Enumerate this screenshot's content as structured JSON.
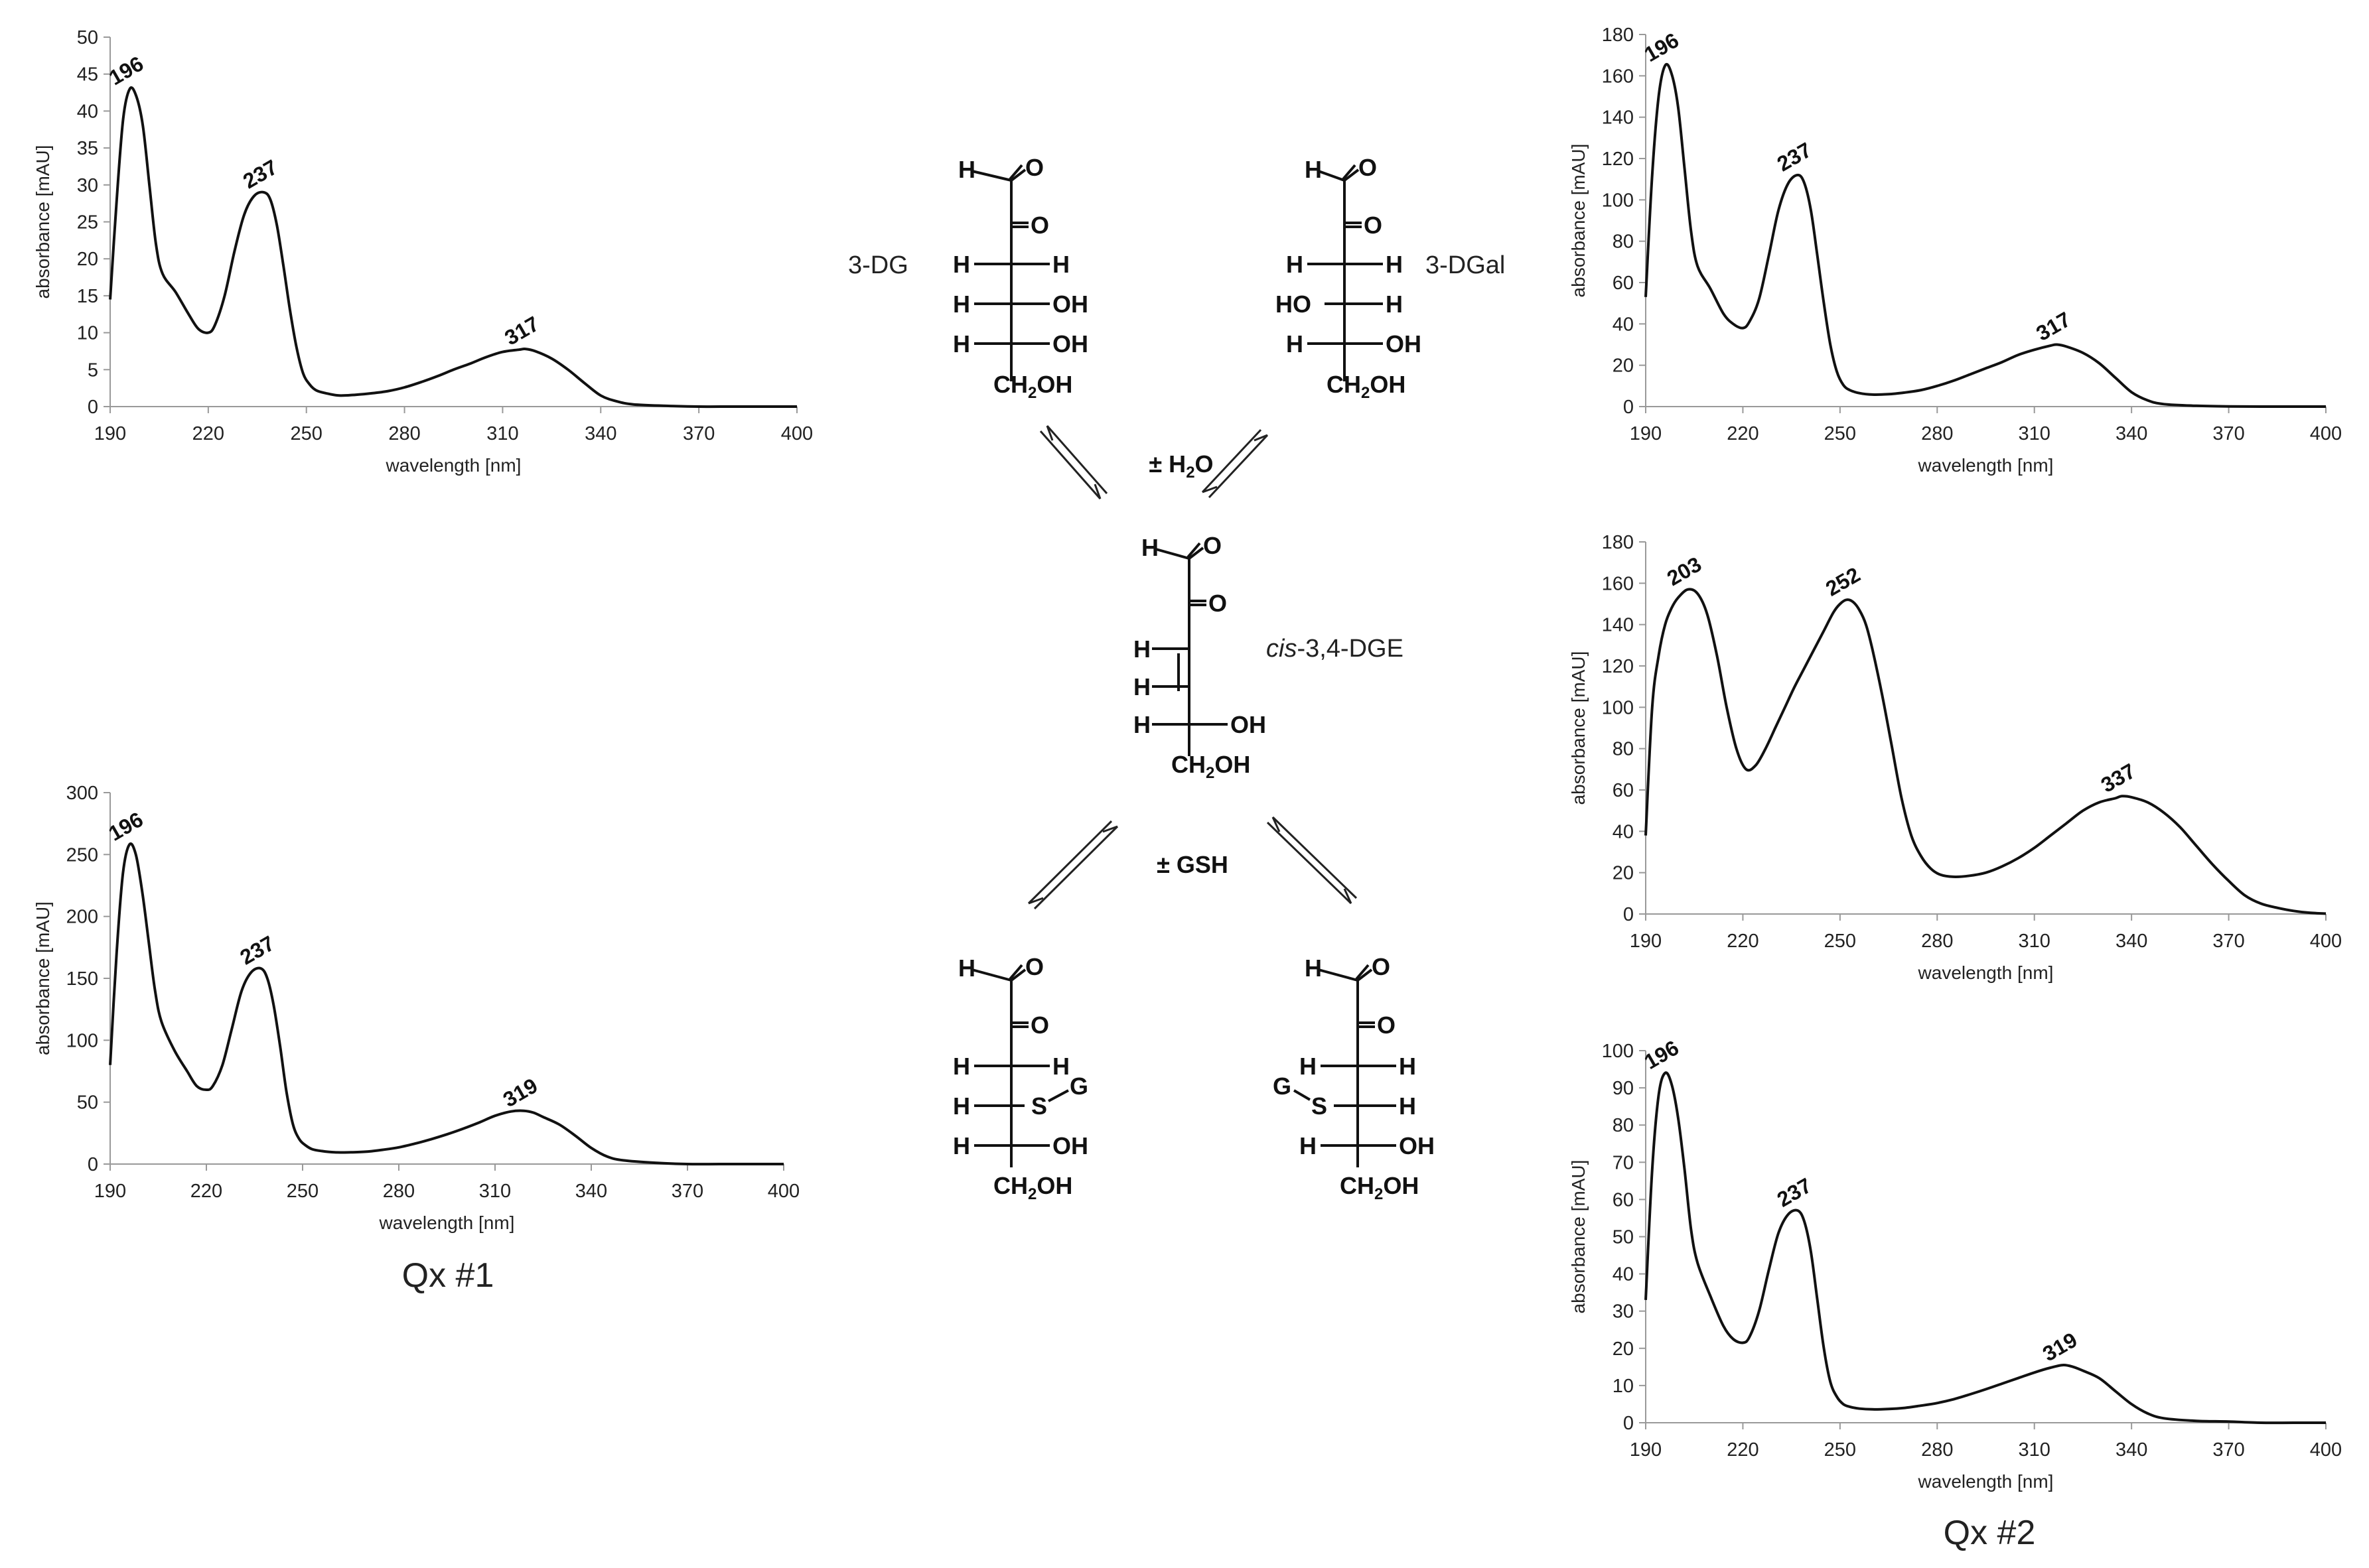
{
  "figure": {
    "captions": {
      "qx1": "Qx #1",
      "qx2": "Qx #2"
    },
    "molecules": {
      "dg": {
        "name": "3-DG",
        "rows": [
          [
            "H",
            "",
            ""
          ],
          [
            "",
            "",
            "O"
          ],
          [
            "H",
            "",
            "H"
          ],
          [
            "H",
            "",
            "OH"
          ],
          [
            "H",
            "",
            "OH"
          ],
          [
            "",
            "CH2OH",
            ""
          ]
        ]
      },
      "dgal": {
        "name": "3-DGal",
        "rows": [
          [
            "H",
            "",
            ""
          ],
          [
            "",
            "",
            "O"
          ],
          [
            "H",
            "",
            "H"
          ],
          [
            "HO",
            "",
            "H"
          ],
          [
            "H",
            "",
            "OH"
          ],
          [
            "",
            "CH2OH",
            ""
          ]
        ]
      },
      "dge": {
        "name_prefix": "cis",
        "name_suffix": "-3,4-DGE",
        "rows": [
          [
            "H",
            "",
            ""
          ],
          [
            "",
            "",
            "O"
          ],
          [
            "H",
            "",
            ""
          ],
          [
            "H",
            "",
            ""
          ],
          [
            "H",
            "",
            "OH"
          ],
          [
            "",
            "CH2OH",
            ""
          ]
        ]
      },
      "gsh_left": {
        "rows": [
          [
            "H",
            "",
            ""
          ],
          [
            "",
            "",
            "O"
          ],
          [
            "H",
            "",
            "H"
          ],
          [
            "H",
            "S",
            "G"
          ],
          [
            "H",
            "",
            "OH"
          ],
          [
            "",
            "CH2OH",
            ""
          ]
        ]
      },
      "gsh_right": {
        "rows": [
          [
            "H",
            "",
            ""
          ],
          [
            "",
            "",
            "O"
          ],
          [
            "H",
            "",
            "H"
          ],
          [
            "G",
            "S",
            "H"
          ],
          [
            "H",
            "",
            "OH"
          ],
          [
            "",
            "CH2OH",
            ""
          ]
        ]
      }
    },
    "reactions": {
      "water": "± H2O",
      "gsh": "± GSH"
    }
  },
  "chart_data": [
    {
      "id": "tl",
      "type": "line",
      "xlabel": "wavelength [nm]",
      "ylabel": "absorbance [mAU]",
      "xlim": [
        190,
        400
      ],
      "xticks": [
        190,
        220,
        250,
        280,
        310,
        340,
        370,
        400
      ],
      "ylim": [
        0,
        50
      ],
      "yticks": [
        0,
        5,
        10,
        15,
        20,
        25,
        30,
        35,
        40,
        45,
        50
      ],
      "x": [
        190,
        192,
        194,
        196,
        198,
        200,
        202,
        204,
        206,
        210,
        214,
        217,
        220,
        222,
        225,
        228,
        231,
        234,
        237,
        239,
        241,
        243,
        245,
        247,
        249,
        251,
        253,
        256,
        260,
        265,
        270,
        275,
        280,
        285,
        290,
        295,
        300,
        305,
        310,
        315,
        317,
        320,
        325,
        330,
        335,
        340,
        345,
        350,
        360,
        370,
        380,
        390,
        400
      ],
      "y": [
        14.5,
        28,
        39,
        43,
        42,
        38,
        30,
        22,
        18,
        15.5,
        12.5,
        10.5,
        10,
        11,
        15,
        21,
        26,
        28.5,
        29,
        28,
        24.5,
        19,
        13,
        8,
        4.5,
        3,
        2.2,
        1.8,
        1.5,
        1.6,
        1.8,
        2.1,
        2.6,
        3.3,
        4.1,
        5,
        5.8,
        6.7,
        7.4,
        7.7,
        7.8,
        7.5,
        6.5,
        5,
        3.2,
        1.5,
        0.7,
        0.3,
        0.1,
        0,
        0,
        0,
        0
      ],
      "peaks": [
        {
          "x": 196,
          "label": "196"
        },
        {
          "x": 237,
          "label": "237"
        },
        {
          "x": 317,
          "label": "317"
        }
      ]
    },
    {
      "id": "bl",
      "type": "line",
      "xlabel": "wavelength [nm]",
      "ylabel": "absorbance [mAU]",
      "xlim": [
        190,
        400
      ],
      "xticks": [
        190,
        220,
        250,
        280,
        310,
        340,
        370,
        400
      ],
      "ylim": [
        0,
        300
      ],
      "yticks": [
        0,
        50,
        100,
        150,
        200,
        250,
        300
      ],
      "x": [
        190,
        192,
        194,
        196,
        198,
        200,
        202,
        204,
        206,
        210,
        214,
        217,
        220,
        222,
        225,
        228,
        231,
        234,
        237,
        239,
        241,
        243,
        245,
        247,
        249,
        251,
        253,
        256,
        260,
        265,
        270,
        275,
        280,
        285,
        290,
        295,
        300,
        305,
        310,
        315,
        319,
        322,
        325,
        330,
        335,
        340,
        345,
        350,
        360,
        370,
        380,
        390,
        400
      ],
      "y": [
        80,
        170,
        235,
        258,
        250,
        220,
        180,
        140,
        115,
        92,
        75,
        63,
        60,
        63,
        80,
        110,
        140,
        155,
        158,
        150,
        128,
        95,
        58,
        32,
        20,
        15,
        12,
        10.5,
        9.5,
        9.5,
        10,
        11.5,
        13.5,
        16.5,
        20,
        24,
        28.5,
        33.5,
        39,
        42.5,
        43,
        41.5,
        38,
        32,
        23,
        13,
        6,
        3,
        1,
        0,
        0,
        0,
        0
      ],
      "peaks": [
        {
          "x": 196,
          "label": "196"
        },
        {
          "x": 237,
          "label": "237"
        },
        {
          "x": 319,
          "label": "319"
        }
      ]
    },
    {
      "id": "tr",
      "type": "line",
      "xlabel": "wavelength [nm]",
      "ylabel": "absorbance [mAU]",
      "xlim": [
        190,
        400
      ],
      "xticks": [
        190,
        220,
        250,
        280,
        310,
        340,
        370,
        400
      ],
      "ylim": [
        0,
        180
      ],
      "yticks": [
        0,
        20,
        40,
        60,
        80,
        100,
        120,
        140,
        160,
        180
      ],
      "x": [
        190,
        192,
        194,
        196,
        198,
        200,
        202,
        204,
        206,
        210,
        214,
        217,
        220,
        222,
        225,
        228,
        231,
        234,
        237,
        239,
        241,
        243,
        245,
        247,
        249,
        251,
        253,
        256,
        260,
        265,
        270,
        275,
        280,
        285,
        290,
        295,
        300,
        305,
        310,
        315,
        317,
        320,
        325,
        330,
        335,
        340,
        345,
        350,
        360,
        370,
        380,
        390,
        400
      ],
      "y": [
        53,
        112,
        150,
        165,
        161,
        145,
        115,
        85,
        68,
        57,
        45,
        40,
        38,
        41,
        52,
        73,
        95,
        108,
        112,
        108,
        95,
        73,
        50,
        30,
        17,
        10.5,
        8,
        6.5,
        5.8,
        6,
        6.8,
        8,
        10,
        12.5,
        15.5,
        18.5,
        21.5,
        25,
        27.5,
        29.5,
        30,
        29,
        26,
        21,
        14,
        7,
        3,
        1.2,
        0.4,
        0.1,
        0,
        0,
        0
      ],
      "peaks": [
        {
          "x": 196,
          "label": "196"
        },
        {
          "x": 237,
          "label": "237"
        },
        {
          "x": 317,
          "label": "317"
        }
      ]
    },
    {
      "id": "mr",
      "type": "line",
      "xlabel": "wavelength [nm]",
      "ylabel": "absorbance [mAU]",
      "xlim": [
        190,
        400
      ],
      "xticks": [
        190,
        220,
        250,
        280,
        310,
        340,
        370,
        400
      ],
      "ylim": [
        0,
        180
      ],
      "yticks": [
        0,
        20,
        40,
        60,
        80,
        100,
        120,
        140,
        160,
        180
      ],
      "x": [
        190,
        192,
        194,
        196,
        198,
        200,
        203,
        206,
        209,
        212,
        215,
        218,
        221,
        224,
        227,
        230,
        233,
        236,
        239,
        242,
        245,
        248,
        250,
        252,
        254,
        256,
        258,
        260,
        263,
        266,
        269,
        272,
        275,
        278,
        281,
        285,
        290,
        295,
        300,
        305,
        310,
        315,
        320,
        325,
        330,
        335,
        337,
        340,
        345,
        350,
        355,
        360,
        365,
        370,
        375,
        380,
        385,
        390,
        395,
        400
      ],
      "y": [
        38,
        100,
        125,
        140,
        148,
        153,
        157,
        155,
        145,
        125,
        100,
        80,
        70,
        72,
        80,
        90,
        100,
        110,
        119,
        128,
        137,
        146,
        150,
        152,
        151,
        147,
        140,
        128,
        106,
        81,
        56,
        38,
        28,
        22,
        19,
        18,
        18.5,
        20,
        23,
        27,
        32,
        38,
        44,
        50,
        54,
        56,
        57,
        56.5,
        54,
        49,
        42,
        33,
        24,
        16,
        9,
        5,
        3,
        1.5,
        0.6,
        0.2
      ],
      "peaks": [
        {
          "x": 203,
          "label": "203"
        },
        {
          "x": 252,
          "label": "252"
        },
        {
          "x": 337,
          "label": "337"
        }
      ]
    },
    {
      "id": "br",
      "type": "line",
      "xlabel": "wavelength [nm]",
      "ylabel": "absorbance [mAU]",
      "xlim": [
        190,
        400
      ],
      "xticks": [
        190,
        220,
        250,
        280,
        310,
        340,
        370,
        400
      ],
      "ylim": [
        0,
        100
      ],
      "yticks": [
        0,
        10,
        20,
        30,
        40,
        50,
        60,
        70,
        80,
        90,
        100
      ],
      "x": [
        190,
        192,
        194,
        196,
        198,
        200,
        202,
        204,
        206,
        210,
        214,
        217,
        220,
        222,
        225,
        228,
        231,
        234,
        237,
        239,
        241,
        243,
        245,
        247,
        249,
        251,
        253,
        256,
        260,
        265,
        270,
        275,
        280,
        285,
        290,
        295,
        300,
        305,
        310,
        315,
        319,
        322,
        325,
        330,
        335,
        340,
        345,
        350,
        360,
        370,
        380,
        390,
        400
      ],
      "y": [
        33,
        68,
        88,
        94,
        91,
        82,
        68,
        52,
        43,
        34,
        26,
        22.5,
        21.5,
        23,
        30,
        41,
        51,
        56,
        57,
        54,
        46,
        33,
        20,
        11,
        7,
        5,
        4.3,
        3.8,
        3.6,
        3.7,
        4,
        4.6,
        5.3,
        6.3,
        7.6,
        9,
        10.5,
        12,
        13.5,
        14.8,
        15.5,
        15,
        14,
        12,
        8.5,
        5,
        2.5,
        1.2,
        0.5,
        0.3,
        0,
        0,
        0
      ],
      "peaks": [
        {
          "x": 196,
          "label": "196"
        },
        {
          "x": 237,
          "label": "237"
        },
        {
          "x": 319,
          "label": "319"
        }
      ]
    }
  ]
}
